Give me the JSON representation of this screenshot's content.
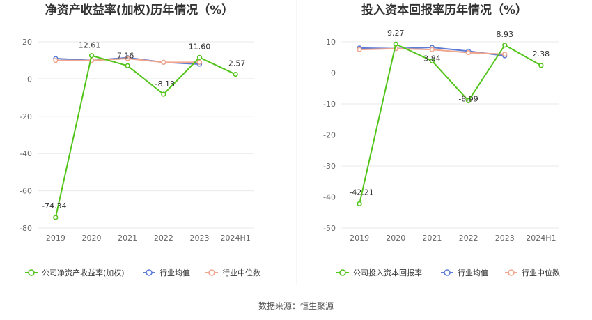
{
  "chart_data": [
    {
      "type": "line",
      "title": "净资产收益率(加权)历年情况（%）",
      "categories": [
        "2019",
        "2020",
        "2021",
        "2022",
        "2023",
        "2024H1"
      ],
      "ylim": [
        -80,
        20
      ],
      "yticks": [
        "20",
        "0",
        "-20",
        "-40",
        "-60",
        "-80"
      ],
      "grid": true,
      "legend_position": "bottom",
      "series": [
        {
          "name": "公司净资产收益率(加权)",
          "color": "#52c41a",
          "values": [
            -74.34,
            12.61,
            7.16,
            -8.13,
            11.6,
            2.57
          ],
          "labels": [
            "-74.34",
            "12.61",
            "7.16",
            "-8.13",
            "11.60",
            "2.57"
          ]
        },
        {
          "name": "行业均值",
          "color": "#5b7bd5",
          "values": [
            11.0,
            10.0,
            11.5,
            9.0,
            8.0,
            null
          ]
        },
        {
          "name": "行业中位数",
          "color": "#f0a58c",
          "values": [
            10.0,
            10.0,
            11.0,
            9.0,
            9.0,
            null
          ]
        }
      ]
    },
    {
      "type": "line",
      "title": "投入资本回报率历年情况（%）",
      "categories": [
        "2019",
        "2020",
        "2021",
        "2022",
        "2023",
        "2024H1"
      ],
      "ylim": [
        -50,
        10
      ],
      "yticks": [
        "10",
        "0",
        "-10",
        "-20",
        "-30",
        "-40",
        "-50"
      ],
      "grid": true,
      "legend_position": "bottom",
      "series": [
        {
          "name": "公司投入资本回报率",
          "color": "#52c41a",
          "values": [
            -42.21,
            9.27,
            3.84,
            -8.99,
            8.93,
            2.38
          ],
          "labels": [
            "-42.21",
            "9.27",
            "3.84",
            "-8.99",
            "8.93",
            "2.38"
          ]
        },
        {
          "name": "行业均值",
          "color": "#5b7bd5",
          "values": [
            8.0,
            7.8,
            8.2,
            7.0,
            5.5,
            null
          ]
        },
        {
          "name": "行业中位数",
          "color": "#f0a58c",
          "values": [
            7.5,
            7.8,
            7.5,
            6.5,
            6.0,
            null
          ]
        }
      ]
    }
  ],
  "footer": {
    "source": "数据来源：恒生聚源"
  }
}
